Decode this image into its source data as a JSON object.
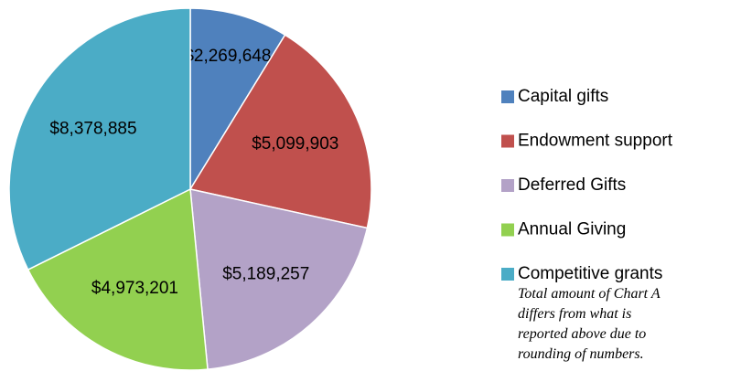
{
  "chart_data": {
    "type": "pie",
    "categories": [
      "Capital gifts",
      "Endowment support",
      "Deferred Gifts",
      "Annual Giving",
      "Competitive grants"
    ],
    "values": [
      2269648,
      5099903,
      5189257,
      4973201,
      8378885
    ],
    "value_labels": [
      "$2,269,648",
      "$5,099,903",
      "$5,189,257",
      "$4,973,201",
      "$8,378,885"
    ],
    "colors": [
      "#4f81bd",
      "#c0504d",
      "#b3a2c7",
      "#92d050",
      "#4bacc6"
    ],
    "legend": "right",
    "annotation": "Total amount of Chart A differs from what is reported above due to rounding of numbers."
  }
}
